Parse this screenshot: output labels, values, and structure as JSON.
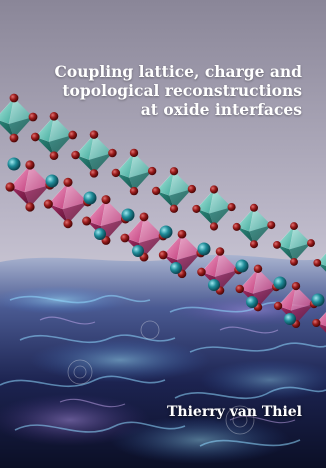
{
  "cover": {
    "title_lines": [
      "Coupling lattice, charge and",
      "topological reconstructions",
      "at oxide interfaces"
    ],
    "author": "Thierry van Thiel"
  },
  "colors": {
    "sky_top": "#8d8a9c",
    "sky_bottom": "#d9d6e0",
    "octahedron_teal": "#3fa89a",
    "octahedron_pink": "#c2407e",
    "oxygen_red": "#8a1414",
    "cation_teal": "#1c7f8c",
    "water_deep": "#141a3a",
    "water_glow": "#4fb8e0"
  }
}
